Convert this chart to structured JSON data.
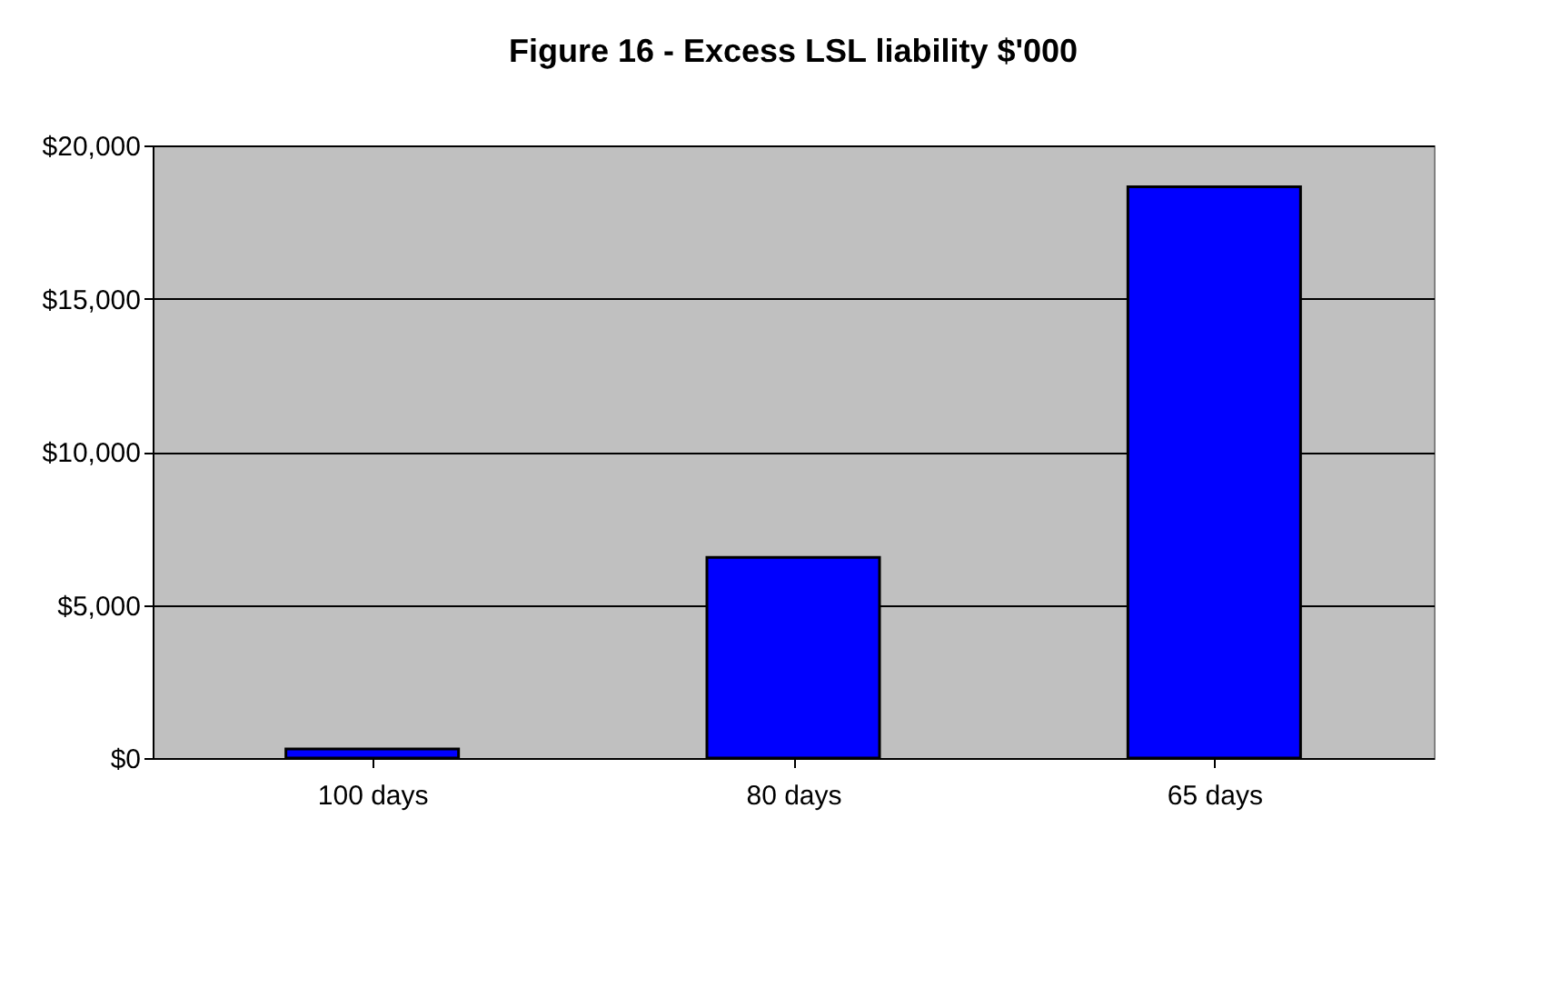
{
  "chart_data": {
    "type": "bar",
    "title": "Figure 16 - Excess LSL liability $'000",
    "categories": [
      "100 days",
      "80 days",
      "65 days"
    ],
    "values": [
      300,
      6550,
      18650
    ],
    "color": "#0000ff",
    "ylim": [
      0,
      20000
    ],
    "yticks": [
      {
        "value": 0,
        "label": "$0"
      },
      {
        "value": 5000,
        "label": "$5,000"
      },
      {
        "value": 10000,
        "label": "$10,000"
      },
      {
        "value": 15000,
        "label": "$15,000"
      },
      {
        "value": 20000,
        "label": "$20,000"
      }
    ],
    "grid": "y"
  }
}
